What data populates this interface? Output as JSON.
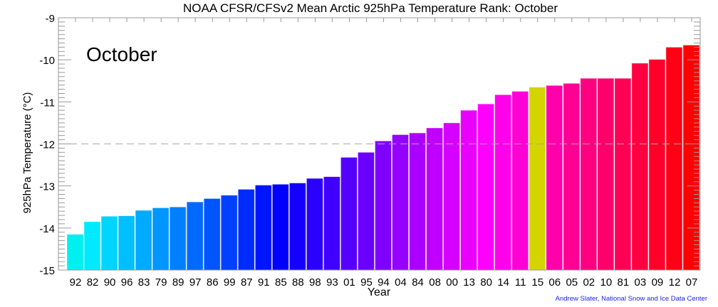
{
  "chart_data": {
    "type": "bar",
    "title": "NOAA CFSR/CFSv2 Mean Arctic 925hPa Temperature Rank: October",
    "annotation": "October",
    "xlabel": "Year",
    "ylabel": "925hPa Temperature (°C)",
    "ylim": [
      -15,
      -9
    ],
    "yticks": [
      "-9",
      "-10",
      "-11",
      "-12",
      "-13",
      "-14",
      "-15"
    ],
    "mean_line": -12.0,
    "categories": [
      "92",
      "82",
      "90",
      "96",
      "83",
      "79",
      "89",
      "97",
      "86",
      "99",
      "87",
      "91",
      "85",
      "88",
      "98",
      "93",
      "01",
      "95",
      "94",
      "04",
      "84",
      "08",
      "00",
      "13",
      "80",
      "14",
      "11",
      "15",
      "06",
      "05",
      "02",
      "10",
      "81",
      "03",
      "09",
      "12",
      "07"
    ],
    "values": [
      -14.15,
      -13.85,
      -13.72,
      -13.71,
      -13.58,
      -13.52,
      -13.5,
      -13.38,
      -13.3,
      -13.22,
      -13.08,
      -12.98,
      -12.96,
      -12.93,
      -12.82,
      -12.78,
      -12.32,
      -12.2,
      -11.93,
      -11.78,
      -11.74,
      -11.62,
      -11.5,
      -11.2,
      -11.05,
      -10.83,
      -10.75,
      -10.65,
      -10.61,
      -10.56,
      -10.44,
      -10.44,
      -10.44,
      -10.08,
      -9.99,
      -9.7,
      -9.65
    ],
    "highlight_category": "15",
    "highlight_color": "#d4d400",
    "colormap": "cyan-blue-magenta-red",
    "credit": "Andrew Slater, National Snow and Ice Data Center",
    "credit_color": "#2020ff",
    "grid": false,
    "legend": "none"
  }
}
